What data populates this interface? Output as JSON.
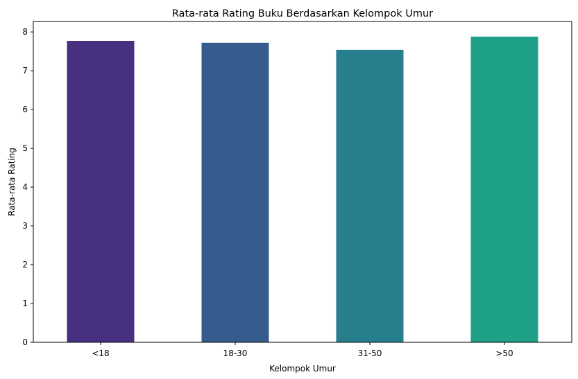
{
  "chart_data": {
    "type": "bar",
    "title": "Rata-rata Rating Buku Berdasarkan Kelompok Umur",
    "xlabel": "Kelompok Umur",
    "ylabel": "Rata-rata Rating",
    "categories": [
      "<18",
      "18-30",
      "31-50",
      ">50"
    ],
    "values": [
      7.77,
      7.72,
      7.54,
      7.88
    ],
    "colors": [
      "#47307f",
      "#365c8d",
      "#277f8e",
      "#1fa187"
    ],
    "ylim": [
      0,
      8.27
    ],
    "yticks": [
      "0",
      "1",
      "2",
      "3",
      "4",
      "5",
      "6",
      "7",
      "8"
    ],
    "grid": false,
    "legend": "none"
  }
}
